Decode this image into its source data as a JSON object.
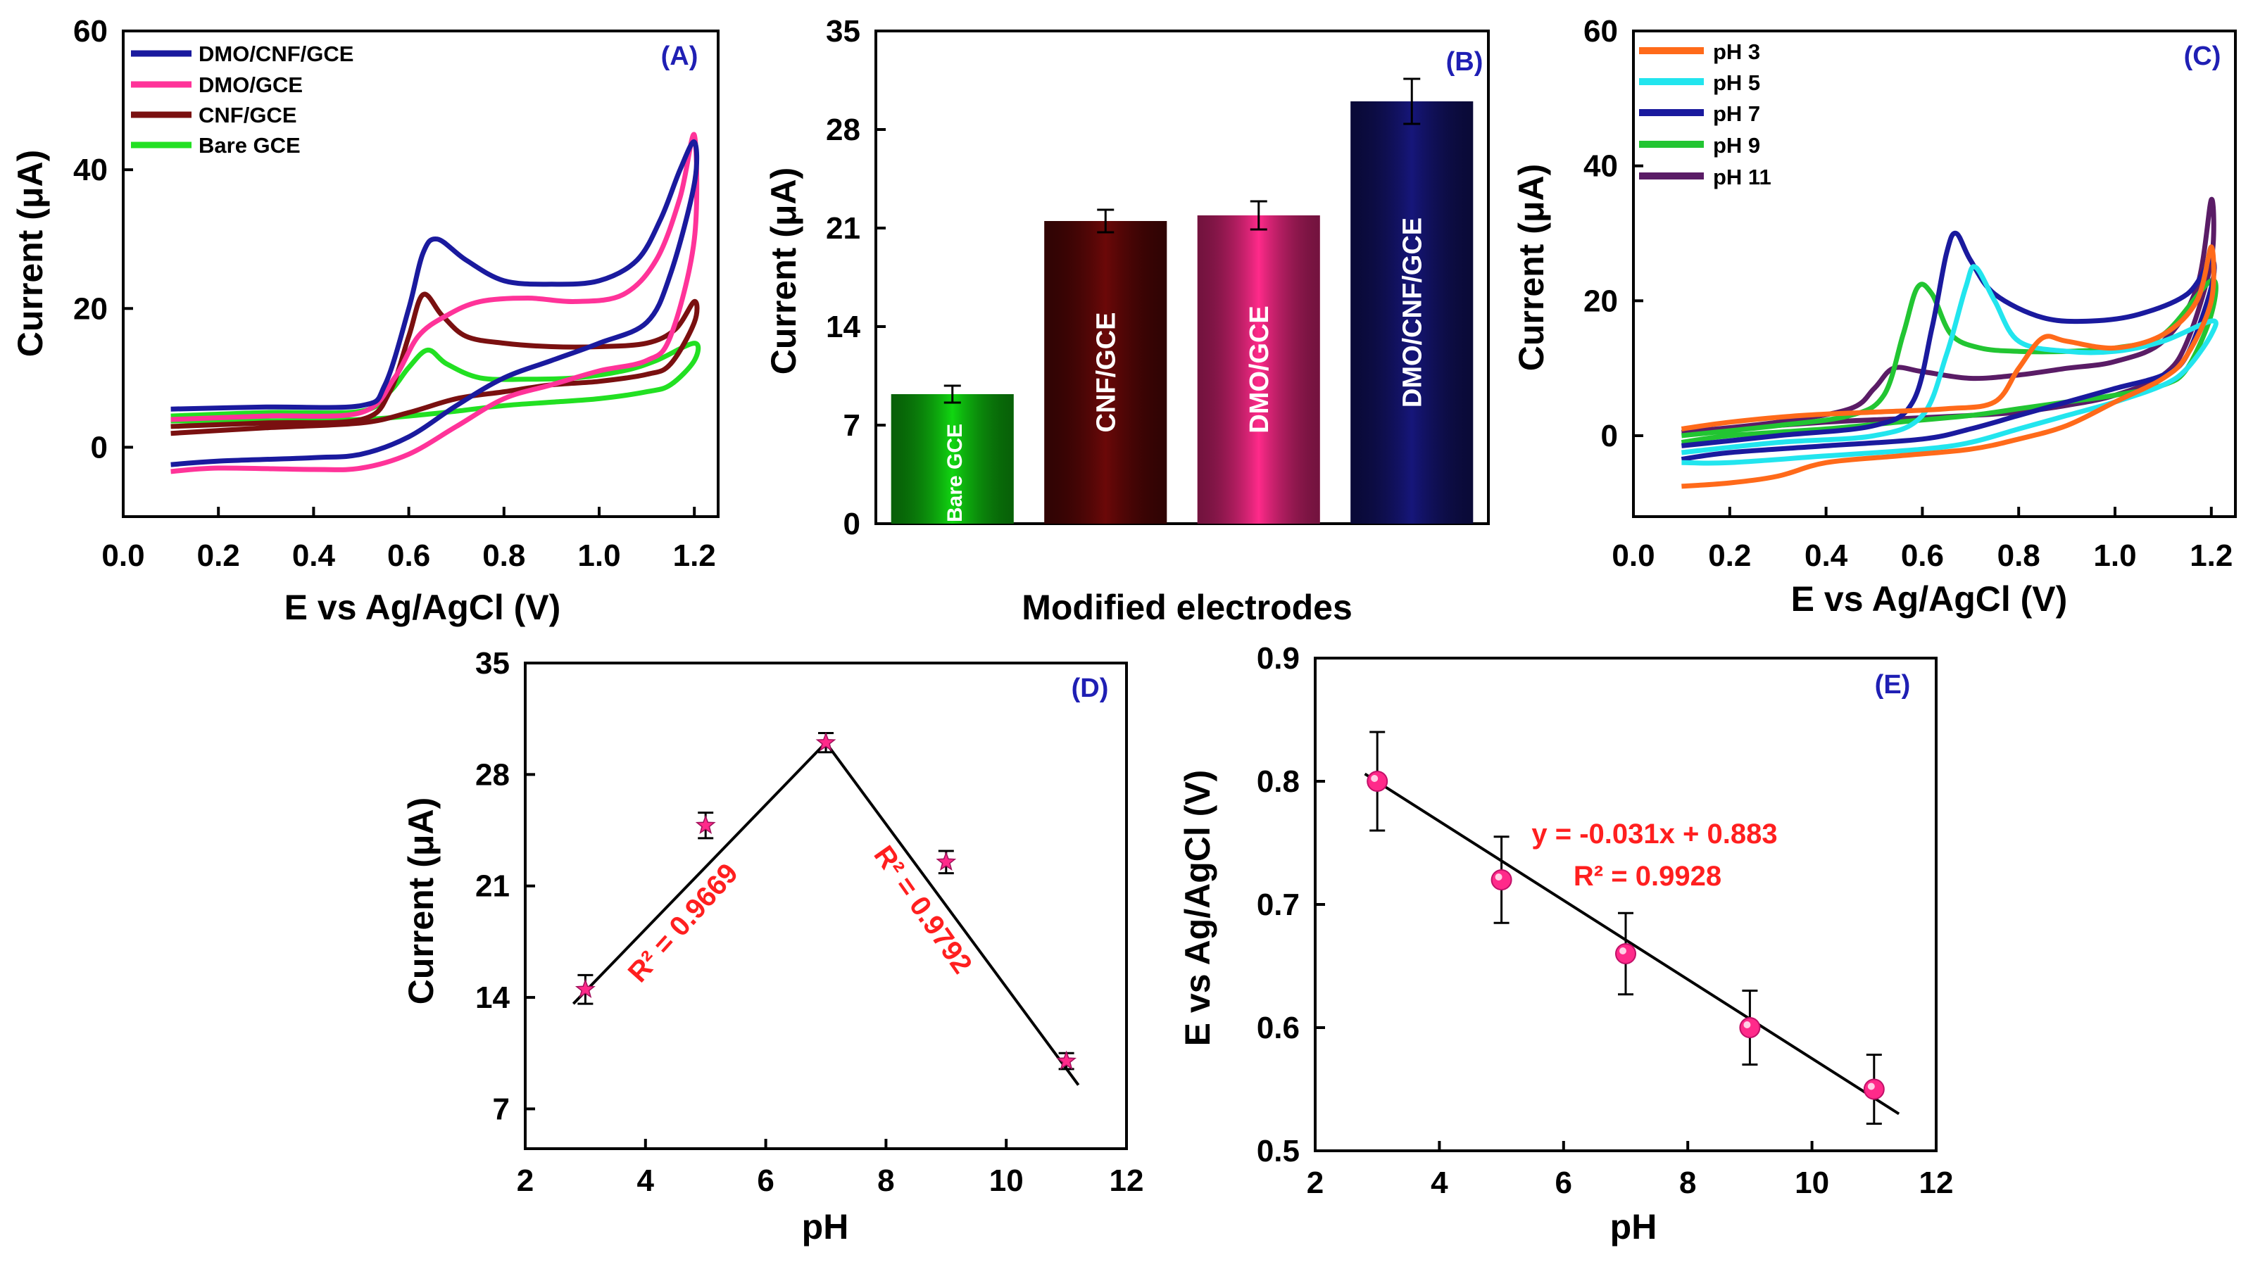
{
  "chart_data": [
    {
      "panel": "(A)",
      "type": "line",
      "xlabel": "E vs Ag/AgCl (V)",
      "ylabel": "Current (μA)",
      "xlim": [
        0.0,
        1.25
      ],
      "ylim": [
        -10,
        60
      ],
      "xticks": [
        "0.0",
        "0.2",
        "0.4",
        "0.6",
        "0.8",
        "1.0",
        "1.2"
      ],
      "yticks": [
        "0",
        "20",
        "40",
        "60"
      ],
      "series": [
        {
          "name": "DMO/CNF/GCE",
          "color": "#1a1a9e",
          "forward": [
            [
              0.1,
              5.5
            ],
            [
              0.3,
              5.8
            ],
            [
              0.5,
              6
            ],
            [
              0.55,
              9
            ],
            [
              0.6,
              20
            ],
            [
              0.63,
              28
            ],
            [
              0.66,
              30
            ],
            [
              0.72,
              27
            ],
            [
              0.8,
              24
            ],
            [
              0.9,
              23.5
            ],
            [
              1.0,
              24
            ],
            [
              1.08,
              27
            ],
            [
              1.13,
              33
            ],
            [
              1.17,
              40
            ],
            [
              1.2,
              44
            ]
          ],
          "reverse": [
            [
              1.2,
              38
            ],
            [
              1.15,
              25
            ],
            [
              1.1,
              18
            ],
            [
              1.0,
              15
            ],
            [
              0.9,
              12.5
            ],
            [
              0.8,
              10
            ],
            [
              0.7,
              6
            ],
            [
              0.6,
              1.5
            ],
            [
              0.5,
              -1
            ],
            [
              0.4,
              -1.5
            ],
            [
              0.2,
              -2
            ],
            [
              0.1,
              -2.5
            ]
          ]
        },
        {
          "name": "DMO/GCE",
          "color": "#ff3399",
          "forward": [
            [
              0.1,
              4
            ],
            [
              0.3,
              4.5
            ],
            [
              0.5,
              5
            ],
            [
              0.57,
              10
            ],
            [
              0.62,
              16
            ],
            [
              0.68,
              19
            ],
            [
              0.75,
              21
            ],
            [
              0.85,
              21.5
            ],
            [
              0.95,
              21
            ],
            [
              1.05,
              22
            ],
            [
              1.12,
              27
            ],
            [
              1.17,
              36
            ],
            [
              1.2,
              45
            ]
          ],
          "reverse": [
            [
              1.2,
              30
            ],
            [
              1.15,
              16
            ],
            [
              1.1,
              12.5
            ],
            [
              1.0,
              11
            ],
            [
              0.9,
              9
            ],
            [
              0.8,
              7
            ],
            [
              0.7,
              3
            ],
            [
              0.6,
              -1
            ],
            [
              0.5,
              -3
            ],
            [
              0.4,
              -3.2
            ],
            [
              0.2,
              -3
            ],
            [
              0.1,
              -3.5
            ]
          ]
        },
        {
          "name": "CNF/GCE",
          "color": "#7a1010",
          "forward": [
            [
              0.1,
              3
            ],
            [
              0.3,
              3.5
            ],
            [
              0.5,
              4
            ],
            [
              0.56,
              8
            ],
            [
              0.6,
              16
            ],
            [
              0.63,
              22
            ],
            [
              0.67,
              19
            ],
            [
              0.72,
              16
            ],
            [
              0.8,
              15
            ],
            [
              0.9,
              14.5
            ],
            [
              1.0,
              14.5
            ],
            [
              1.1,
              15
            ],
            [
              1.16,
              17
            ],
            [
              1.2,
              21
            ]
          ],
          "reverse": [
            [
              1.2,
              18
            ],
            [
              1.15,
              12
            ],
            [
              1.1,
              10.5
            ],
            [
              1.0,
              9.5
            ],
            [
              0.9,
              9
            ],
            [
              0.8,
              8
            ],
            [
              0.7,
              7
            ],
            [
              0.6,
              5
            ],
            [
              0.5,
              3.5
            ],
            [
              0.3,
              2.8
            ],
            [
              0.1,
              2
            ]
          ]
        },
        {
          "name": "Bare GCE",
          "color": "#22e022",
          "forward": [
            [
              0.1,
              4.5
            ],
            [
              0.3,
              5
            ],
            [
              0.5,
              5.2
            ],
            [
              0.56,
              8
            ],
            [
              0.6,
              11.5
            ],
            [
              0.64,
              14
            ],
            [
              0.68,
              12
            ],
            [
              0.75,
              10
            ],
            [
              0.85,
              9.8
            ],
            [
              0.95,
              10
            ],
            [
              1.05,
              11
            ],
            [
              1.12,
              12.5
            ],
            [
              1.2,
              15
            ]
          ],
          "reverse": [
            [
              1.2,
              12.5
            ],
            [
              1.15,
              9
            ],
            [
              1.1,
              8
            ],
            [
              1.0,
              7
            ],
            [
              0.9,
              6.5
            ],
            [
              0.8,
              6
            ],
            [
              0.7,
              5.2
            ],
            [
              0.6,
              4.5
            ],
            [
              0.5,
              4
            ],
            [
              0.3,
              3.8
            ],
            [
              0.1,
              3.8
            ]
          ]
        }
      ]
    },
    {
      "panel": "(B)",
      "type": "bar",
      "xlabel": "Modified electrodes",
      "ylabel": "Current (μA)",
      "ylim": [
        0,
        35
      ],
      "yticks": [
        "0",
        "7",
        "14",
        "21",
        "28",
        "35"
      ],
      "categories": [
        "Bare GCE",
        "CNF/GCE",
        "DMO/GCE",
        "DMO/CNF/GCE"
      ],
      "values": [
        9.2,
        21.5,
        21.9,
        30.0
      ],
      "errors": [
        0.6,
        0.8,
        1.0,
        1.6
      ],
      "colors": [
        "#11d611",
        "#6b0808",
        "#ff2a8a",
        "#16167a"
      ]
    },
    {
      "panel": "(C)",
      "type": "line",
      "xlabel": "E vs Ag/AgCl (V)",
      "ylabel": "Current (μA)",
      "xlim": [
        0.0,
        1.25
      ],
      "ylim": [
        -12,
        60
      ],
      "xticks": [
        "0.0",
        "0.2",
        "0.4",
        "0.6",
        "0.8",
        "1.0",
        "1.2"
      ],
      "yticks": [
        "0",
        "20",
        "40",
        "60"
      ],
      "series": [
        {
          "name": "pH 3",
          "color": "#ff6a1a",
          "forward": [
            [
              0.1,
              1
            ],
            [
              0.2,
              2
            ],
            [
              0.35,
              3
            ],
            [
              0.5,
              3.5
            ],
            [
              0.65,
              4
            ],
            [
              0.75,
              5
            ],
            [
              0.8,
              10
            ],
            [
              0.85,
              14.5
            ],
            [
              0.9,
              14
            ],
            [
              1.0,
              13
            ],
            [
              1.1,
              15
            ],
            [
              1.17,
              20
            ],
            [
              1.2,
              28
            ]
          ],
          "reverse": [
            [
              1.2,
              20
            ],
            [
              1.15,
              12
            ],
            [
              1.1,
              8.5
            ],
            [
              1.0,
              5
            ],
            [
              0.9,
              1.5
            ],
            [
              0.8,
              -0.5
            ],
            [
              0.7,
              -2
            ],
            [
              0.55,
              -3
            ],
            [
              0.4,
              -4
            ],
            [
              0.3,
              -6
            ],
            [
              0.2,
              -7
            ],
            [
              0.1,
              -7.5
            ]
          ]
        },
        {
          "name": "pH 5",
          "color": "#22e5ee",
          "forward": [
            [
              0.1,
              -2.5
            ],
            [
              0.3,
              -1
            ],
            [
              0.5,
              0
            ],
            [
              0.6,
              3
            ],
            [
              0.65,
              12
            ],
            [
              0.69,
              22
            ],
            [
              0.71,
              25
            ],
            [
              0.75,
              20
            ],
            [
              0.8,
              14
            ],
            [
              0.9,
              12.5
            ],
            [
              1.0,
              12.5
            ],
            [
              1.1,
              14
            ],
            [
              1.2,
              17
            ]
          ],
          "reverse": [
            [
              1.2,
              15
            ],
            [
              1.15,
              10
            ],
            [
              1.1,
              7.5
            ],
            [
              1.0,
              5
            ],
            [
              0.9,
              3
            ],
            [
              0.8,
              1
            ],
            [
              0.7,
              -1
            ],
            [
              0.6,
              -2
            ],
            [
              0.4,
              -3
            ],
            [
              0.2,
              -4
            ],
            [
              0.1,
              -4
            ]
          ]
        },
        {
          "name": "pH 7",
          "color": "#1a1a9e",
          "forward": [
            [
              0.1,
              -1.5
            ],
            [
              0.3,
              0
            ],
            [
              0.5,
              1.5
            ],
            [
              0.58,
              5
            ],
            [
              0.62,
              16
            ],
            [
              0.65,
              27
            ],
            [
              0.67,
              30
            ],
            [
              0.7,
              26
            ],
            [
              0.75,
              21
            ],
            [
              0.85,
              17.5
            ],
            [
              0.95,
              17
            ],
            [
              1.05,
              18
            ],
            [
              1.15,
              21
            ],
            [
              1.2,
              26
            ]
          ],
          "reverse": [
            [
              1.2,
              22
            ],
            [
              1.15,
              12
            ],
            [
              1.1,
              9
            ],
            [
              1.0,
              7
            ],
            [
              0.9,
              5
            ],
            [
              0.8,
              3
            ],
            [
              0.7,
              1
            ],
            [
              0.6,
              -0.5
            ],
            [
              0.4,
              -1.5
            ],
            [
              0.2,
              -2.5
            ],
            [
              0.1,
              -3.5
            ]
          ]
        },
        {
          "name": "pH 9",
          "color": "#22c532",
          "forward": [
            [
              0.1,
              0
            ],
            [
              0.3,
              1.5
            ],
            [
              0.45,
              3
            ],
            [
              0.52,
              6
            ],
            [
              0.56,
              15
            ],
            [
              0.59,
              22
            ],
            [
              0.62,
              21
            ],
            [
              0.66,
              15
            ],
            [
              0.72,
              13
            ],
            [
              0.8,
              12.5
            ],
            [
              0.9,
              12.5
            ],
            [
              1.0,
              13
            ],
            [
              1.1,
              15
            ],
            [
              1.2,
              23
            ]
          ],
          "reverse": [
            [
              1.2,
              18
            ],
            [
              1.15,
              10
            ],
            [
              1.1,
              7.5
            ],
            [
              1.0,
              6
            ],
            [
              0.9,
              5
            ],
            [
              0.8,
              4
            ],
            [
              0.7,
              3
            ],
            [
              0.55,
              2
            ],
            [
              0.4,
              1
            ],
            [
              0.2,
              0
            ],
            [
              0.1,
              -1
            ]
          ]
        },
        {
          "name": "pH 11",
          "color": "#5a1c66",
          "forward": [
            [
              0.1,
              0.5
            ],
            [
              0.3,
              2
            ],
            [
              0.45,
              4
            ],
            [
              0.5,
              7
            ],
            [
              0.54,
              10
            ],
            [
              0.6,
              9.5
            ],
            [
              0.7,
              8.5
            ],
            [
              0.8,
              9
            ],
            [
              0.9,
              10
            ],
            [
              1.0,
              11
            ],
            [
              1.1,
              14
            ],
            [
              1.17,
              22
            ],
            [
              1.2,
              35
            ]
          ],
          "reverse": [
            [
              1.2,
              26
            ],
            [
              1.15,
              14
            ],
            [
              1.1,
              9
            ],
            [
              1.0,
              6
            ],
            [
              0.9,
              4.5
            ],
            [
              0.8,
              3.5
            ],
            [
              0.7,
              3
            ],
            [
              0.55,
              2.5
            ],
            [
              0.4,
              2
            ],
            [
              0.2,
              1
            ],
            [
              0.1,
              0.5
            ]
          ]
        }
      ]
    },
    {
      "panel": "(D)",
      "type": "scatter",
      "xlabel": "pH",
      "ylabel": "Current (μA)",
      "xlim": [
        2,
        12
      ],
      "ylim": [
        4.5,
        35
      ],
      "xticks": [
        "2",
        "4",
        "6",
        "8",
        "10",
        "12"
      ],
      "yticks": [
        "7",
        "14",
        "21",
        "28",
        "35"
      ],
      "x": [
        3,
        5,
        7,
        9,
        11
      ],
      "values": [
        14.5,
        24.8,
        30.0,
        22.5,
        10.0
      ],
      "errors": [
        0.9,
        0.8,
        0.6,
        0.7,
        0.5
      ],
      "fit_lines": [
        {
          "x": [
            2.8,
            7.0
          ],
          "y": [
            13.6,
            30.0
          ],
          "label": "R² = 0.9669"
        },
        {
          "x": [
            7.0,
            11.2
          ],
          "y": [
            30.0,
            8.5
          ],
          "label": "R² = 0.9792"
        }
      ]
    },
    {
      "panel": "(E)",
      "type": "scatter",
      "xlabel": "pH",
      "ylabel": "E vs Ag/AgCl (V)",
      "xlim": [
        2,
        12
      ],
      "ylim": [
        0.5,
        0.9
      ],
      "xticks": [
        "2",
        "4",
        "6",
        "8",
        "10",
        "12"
      ],
      "yticks": [
        "0.5",
        "0.6",
        "0.7",
        "0.8",
        "0.9"
      ],
      "x": [
        3,
        5,
        7,
        9,
        11
      ],
      "values": [
        0.8,
        0.72,
        0.66,
        0.6,
        0.55
      ],
      "errors": [
        0.04,
        0.035,
        0.033,
        0.03,
        0.028
      ],
      "fit_line": {
        "x": [
          2.8,
          11.4
        ],
        "y": [
          0.806,
          0.53
        ]
      },
      "equation": "y = -0.031x + 0.883",
      "r2": "R² = 0.9928"
    }
  ]
}
